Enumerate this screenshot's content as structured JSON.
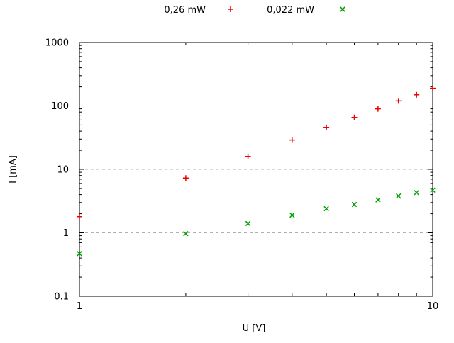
{
  "figure": {
    "background": "#ffffff",
    "text_color": "#000000",
    "border_color": "#000000",
    "grid_color": "#b0b0b0"
  },
  "chart_data": {
    "type": "scatter",
    "title": "",
    "xlabel": "U [V]",
    "ylabel": "I [mA]",
    "x_scale": "log",
    "y_scale": "log",
    "xlim": [
      1,
      10
    ],
    "ylim": [
      0.1,
      1000
    ],
    "x_ticks": [
      {
        "value": 1,
        "label": "1"
      },
      {
        "value": 10,
        "label": "10"
      }
    ],
    "y_ticks": [
      {
        "value": 0.1,
        "label": "0.1"
      },
      {
        "value": 1,
        "label": "1"
      },
      {
        "value": 10,
        "label": "10"
      },
      {
        "value": 100,
        "label": "100"
      },
      {
        "value": 1000,
        "label": "1000"
      }
    ],
    "grid": {
      "horizontal_at": [
        1,
        10,
        100
      ],
      "style": "dashed"
    },
    "legend_position": "top-center-outside",
    "series": [
      {
        "name": "0,26 mW",
        "marker": "plus",
        "color": "#ee0000",
        "x": [
          1,
          2,
          3,
          4,
          5,
          6,
          7,
          8,
          9,
          10
        ],
        "y": [
          1.8,
          7.3,
          16,
          29,
          46,
          66,
          90,
          120,
          150,
          190
        ]
      },
      {
        "name": "0,022 mW",
        "marker": "cross",
        "color": "#00a000",
        "x": [
          1,
          2,
          3,
          4,
          5,
          6,
          7,
          8,
          9,
          10
        ],
        "y": [
          0.47,
          0.97,
          1.4,
          1.9,
          2.4,
          2.8,
          3.3,
          3.8,
          4.3,
          4.7
        ]
      }
    ]
  }
}
